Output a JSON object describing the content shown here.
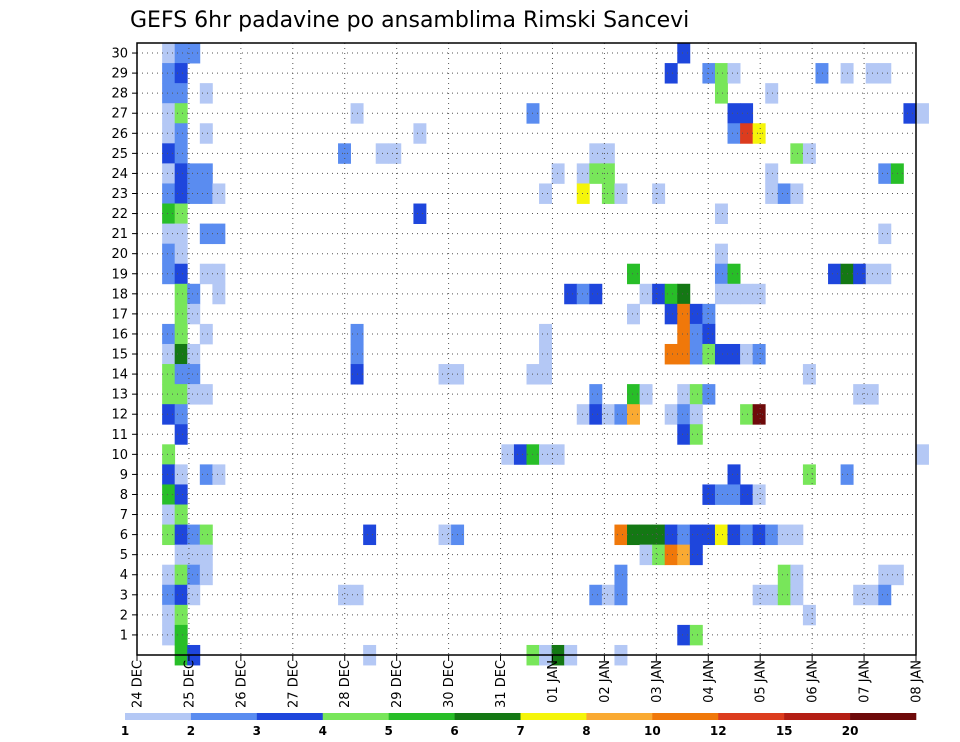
{
  "chart_data": {
    "type": "heatmap",
    "title": "GEFS 6hr padavine po ansamblima Rimski Sancevi",
    "xlabel": "",
    "ylabel": "",
    "x_tick_labels": [
      "24 DEC",
      "25 DEC",
      "26 DEC",
      "27 DEC",
      "28 DEC",
      "29 DEC",
      "30 DEC",
      "31 DEC",
      "01 JAN",
      "02 JAN",
      "03 JAN",
      "04 JAN",
      "05 JAN",
      "06 JAN",
      "07 JAN",
      "08 JAN"
    ],
    "y_tick_labels": [
      "1",
      "2",
      "3",
      "4",
      "5",
      "6",
      "7",
      "8",
      "9",
      "10",
      "11",
      "12",
      "13",
      "14",
      "15",
      "16",
      "17",
      "18",
      "19",
      "20",
      "21",
      "22",
      "23",
      "24",
      "25",
      "26",
      "27",
      "28",
      "29",
      "30"
    ],
    "time_steps": 62,
    "members": 30,
    "colorbar": {
      "labels": [
        "1",
        "2",
        "3",
        "4",
        "5",
        "6",
        "7",
        "8",
        "10",
        "12",
        "15",
        "20"
      ],
      "colors": [
        "#b4c8f5",
        "#5a8cf0",
        "#1e46dc",
        "#78e65a",
        "#28be28",
        "#147814",
        "#f5f50a",
        "#faaa32",
        "#f0780a",
        "#dc3c1e",
        "#b41e14",
        "#6e0a0a"
      ]
    },
    "cells": [
      [
        30,
        2,
        1
      ],
      [
        30,
        3,
        2
      ],
      [
        30,
        4,
        2
      ],
      [
        30,
        43,
        3
      ],
      [
        29,
        2,
        2
      ],
      [
        29,
        3,
        3
      ],
      [
        29,
        42,
        3
      ],
      [
        29,
        45,
        2
      ],
      [
        29,
        46,
        4
      ],
      [
        29,
        47,
        1
      ],
      [
        29,
        54,
        2
      ],
      [
        29,
        56,
        1
      ],
      [
        29,
        58,
        1
      ],
      [
        29,
        59,
        1
      ],
      [
        28,
        2,
        2
      ],
      [
        28,
        3,
        2
      ],
      [
        28,
        5,
        1
      ],
      [
        28,
        46,
        4
      ],
      [
        28,
        50,
        1
      ],
      [
        27,
        2,
        1
      ],
      [
        27,
        3,
        4
      ],
      [
        27,
        17,
        1
      ],
      [
        27,
        31,
        2
      ],
      [
        27,
        47,
        3
      ],
      [
        27,
        48,
        3
      ],
      [
        27,
        61,
        3
      ],
      [
        27,
        62,
        1
      ],
      [
        26,
        2,
        1
      ],
      [
        26,
        3,
        2
      ],
      [
        26,
        5,
        1
      ],
      [
        26,
        22,
        1
      ],
      [
        26,
        47,
        2
      ],
      [
        26,
        48,
        10
      ],
      [
        26,
        49,
        7
      ],
      [
        25,
        2,
        3
      ],
      [
        25,
        3,
        2
      ],
      [
        25,
        16,
        2
      ],
      [
        25,
        19,
        1
      ],
      [
        25,
        20,
        1
      ],
      [
        25,
        36,
        1
      ],
      [
        25,
        37,
        1
      ],
      [
        25,
        52,
        4
      ],
      [
        25,
        53,
        1
      ],
      [
        24,
        2,
        1
      ],
      [
        24,
        3,
        3
      ],
      [
        24,
        4,
        2
      ],
      [
        24,
        5,
        2
      ],
      [
        24,
        33,
        1
      ],
      [
        24,
        35,
        1
      ],
      [
        24,
        36,
        4
      ],
      [
        24,
        37,
        4
      ],
      [
        24,
        50,
        1
      ],
      [
        24,
        59,
        2
      ],
      [
        24,
        60,
        5
      ],
      [
        23,
        2,
        2
      ],
      [
        23,
        3,
        3
      ],
      [
        23,
        4,
        2
      ],
      [
        23,
        5,
        2
      ],
      [
        23,
        6,
        1
      ],
      [
        23,
        32,
        1
      ],
      [
        23,
        35,
        7
      ],
      [
        23,
        37,
        4
      ],
      [
        23,
        38,
        1
      ],
      [
        23,
        41,
        1
      ],
      [
        23,
        50,
        1
      ],
      [
        23,
        51,
        2
      ],
      [
        23,
        52,
        1
      ],
      [
        22,
        2,
        5
      ],
      [
        22,
        3,
        4
      ],
      [
        22,
        22,
        3
      ],
      [
        22,
        46,
        1
      ],
      [
        21,
        2,
        1
      ],
      [
        21,
        3,
        1
      ],
      [
        21,
        5,
        2
      ],
      [
        21,
        6,
        2
      ],
      [
        21,
        59,
        1
      ],
      [
        20,
        2,
        2
      ],
      [
        20,
        3,
        1
      ],
      [
        20,
        46,
        1
      ],
      [
        19,
        2,
        2
      ],
      [
        19,
        3,
        3
      ],
      [
        19,
        5,
        1
      ],
      [
        19,
        6,
        1
      ],
      [
        19,
        39,
        5
      ],
      [
        19,
        46,
        2
      ],
      [
        19,
        47,
        5
      ],
      [
        19,
        55,
        3
      ],
      [
        19,
        56,
        6
      ],
      [
        19,
        57,
        3
      ],
      [
        19,
        58,
        1
      ],
      [
        19,
        59,
        1
      ],
      [
        18,
        3,
        4
      ],
      [
        18,
        4,
        2
      ],
      [
        18,
        6,
        1
      ],
      [
        18,
        34,
        3
      ],
      [
        18,
        35,
        2
      ],
      [
        18,
        36,
        3
      ],
      [
        18,
        40,
        1
      ],
      [
        18,
        41,
        3
      ],
      [
        18,
        42,
        5
      ],
      [
        18,
        43,
        6
      ],
      [
        18,
        46,
        1
      ],
      [
        18,
        47,
        1
      ],
      [
        18,
        48,
        1
      ],
      [
        18,
        49,
        1
      ],
      [
        17,
        3,
        4
      ],
      [
        17,
        4,
        1
      ],
      [
        17,
        39,
        1
      ],
      [
        17,
        42,
        3
      ],
      [
        17,
        43,
        9
      ],
      [
        17,
        44,
        3
      ],
      [
        17,
        45,
        2
      ],
      [
        16,
        2,
        2
      ],
      [
        16,
        3,
        4
      ],
      [
        16,
        5,
        1
      ],
      [
        16,
        17,
        2
      ],
      [
        16,
        32,
        1
      ],
      [
        16,
        43,
        9
      ],
      [
        16,
        44,
        2
      ],
      [
        16,
        45,
        3
      ],
      [
        15,
        2,
        1
      ],
      [
        15,
        3,
        6
      ],
      [
        15,
        4,
        1
      ],
      [
        15,
        17,
        2
      ],
      [
        15,
        32,
        1
      ],
      [
        15,
        42,
        9
      ],
      [
        15,
        43,
        9
      ],
      [
        15,
        44,
        2
      ],
      [
        15,
        45,
        4
      ],
      [
        15,
        46,
        3
      ],
      [
        15,
        47,
        3
      ],
      [
        15,
        48,
        1
      ],
      [
        15,
        49,
        2
      ],
      [
        14,
        2,
        4
      ],
      [
        14,
        3,
        2
      ],
      [
        14,
        4,
        2
      ],
      [
        14,
        17,
        3
      ],
      [
        14,
        24,
        1
      ],
      [
        14,
        25,
        1
      ],
      [
        14,
        31,
        1
      ],
      [
        14,
        32,
        1
      ],
      [
        14,
        53,
        1
      ],
      [
        13,
        2,
        4
      ],
      [
        13,
        3,
        4
      ],
      [
        13,
        4,
        1
      ],
      [
        13,
        5,
        1
      ],
      [
        13,
        36,
        2
      ],
      [
        13,
        39,
        5
      ],
      [
        13,
        40,
        1
      ],
      [
        13,
        43,
        1
      ],
      [
        13,
        44,
        4
      ],
      [
        13,
        45,
        2
      ],
      [
        13,
        57,
        1
      ],
      [
        13,
        58,
        1
      ],
      [
        12,
        2,
        3
      ],
      [
        12,
        3,
        2
      ],
      [
        12,
        35,
        1
      ],
      [
        12,
        36,
        3
      ],
      [
        12,
        37,
        1
      ],
      [
        12,
        38,
        2
      ],
      [
        12,
        39,
        8
      ],
      [
        12,
        42,
        1
      ],
      [
        12,
        43,
        2
      ],
      [
        12,
        44,
        1
      ],
      [
        12,
        48,
        4
      ],
      [
        12,
        49,
        12
      ],
      [
        11,
        3,
        3
      ],
      [
        11,
        43,
        3
      ],
      [
        11,
        44,
        4
      ],
      [
        10,
        2,
        4
      ],
      [
        10,
        29,
        1
      ],
      [
        10,
        30,
        3
      ],
      [
        10,
        31,
        5
      ],
      [
        10,
        32,
        1
      ],
      [
        10,
        33,
        1
      ],
      [
        10,
        62,
        1
      ],
      [
        9,
        2,
        3
      ],
      [
        9,
        3,
        1
      ],
      [
        9,
        5,
        2
      ],
      [
        9,
        6,
        1
      ],
      [
        9,
        47,
        3
      ],
      [
        9,
        53,
        4
      ],
      [
        9,
        56,
        2
      ],
      [
        8,
        2,
        5
      ],
      [
        8,
        3,
        3
      ],
      [
        8,
        45,
        3
      ],
      [
        8,
        46,
        2
      ],
      [
        8,
        47,
        2
      ],
      [
        8,
        48,
        3
      ],
      [
        8,
        49,
        1
      ],
      [
        7,
        2,
        1
      ],
      [
        7,
        3,
        4
      ],
      [
        6,
        2,
        4
      ],
      [
        6,
        3,
        3
      ],
      [
        6,
        4,
        2
      ],
      [
        6,
        5,
        4
      ],
      [
        6,
        18,
        3
      ],
      [
        6,
        24,
        1
      ],
      [
        6,
        25,
        2
      ],
      [
        6,
        38,
        9
      ],
      [
        6,
        39,
        6
      ],
      [
        6,
        40,
        6
      ],
      [
        6,
        41,
        6
      ],
      [
        6,
        42,
        3
      ],
      [
        6,
        43,
        2
      ],
      [
        6,
        44,
        3
      ],
      [
        6,
        45,
        3
      ],
      [
        6,
        46,
        7
      ],
      [
        6,
        47,
        3
      ],
      [
        6,
        48,
        2
      ],
      [
        6,
        49,
        3
      ],
      [
        6,
        50,
        2
      ],
      [
        6,
        51,
        1
      ],
      [
        6,
        52,
        1
      ],
      [
        5,
        3,
        1
      ],
      [
        5,
        4,
        1
      ],
      [
        5,
        5,
        1
      ],
      [
        5,
        40,
        1
      ],
      [
        5,
        41,
        4
      ],
      [
        5,
        42,
        9
      ],
      [
        5,
        43,
        8
      ],
      [
        5,
        44,
        3
      ],
      [
        4,
        2,
        1
      ],
      [
        4,
        3,
        4
      ],
      [
        4,
        4,
        2
      ],
      [
        4,
        5,
        1
      ],
      [
        4,
        38,
        2
      ],
      [
        4,
        51,
        4
      ],
      [
        4,
        52,
        1
      ],
      [
        4,
        59,
        1
      ],
      [
        4,
        60,
        1
      ],
      [
        3,
        2,
        2
      ],
      [
        3,
        3,
        3
      ],
      [
        3,
        4,
        1
      ],
      [
        3,
        16,
        1
      ],
      [
        3,
        17,
        1
      ],
      [
        3,
        36,
        2
      ],
      [
        3,
        37,
        1
      ],
      [
        3,
        38,
        2
      ],
      [
        3,
        49,
        1
      ],
      [
        3,
        50,
        1
      ],
      [
        3,
        51,
        4
      ],
      [
        3,
        52,
        1
      ],
      [
        3,
        57,
        1
      ],
      [
        3,
        58,
        1
      ],
      [
        3,
        59,
        2
      ],
      [
        2,
        2,
        1
      ],
      [
        2,
        3,
        4
      ],
      [
        2,
        53,
        1
      ],
      [
        1,
        2,
        1
      ],
      [
        1,
        3,
        5
      ],
      [
        1,
        43,
        3
      ],
      [
        1,
        44,
        4
      ],
      [
        0,
        3,
        5
      ],
      [
        0,
        4,
        3
      ],
      [
        0,
        18,
        1
      ],
      [
        0,
        31,
        4
      ],
      [
        0,
        32,
        1
      ],
      [
        0,
        33,
        6
      ],
      [
        0,
        34,
        1
      ],
      [
        0,
        38,
        1
      ]
    ]
  }
}
